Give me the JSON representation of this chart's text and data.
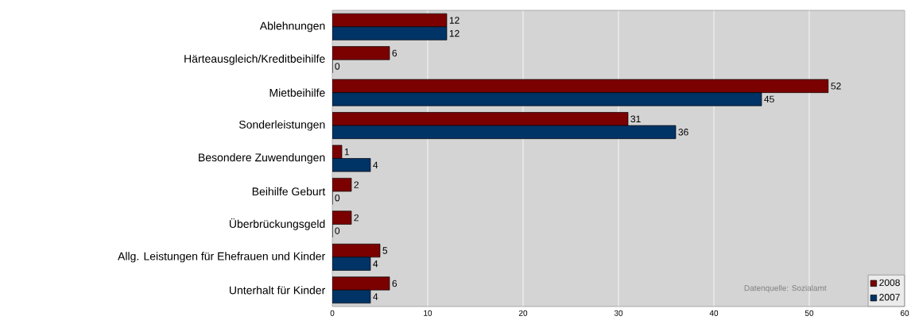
{
  "chart_data": {
    "type": "bar",
    "orientation": "horizontal",
    "categories": [
      "Ablehnungen",
      "Härteausgleich/Kreditbeihilfe",
      "Mietbeihilfe",
      "Sonderleistungen",
      "Besondere Zuwendungen",
      "Beihilfe Geburt",
      "Überbrückungsgeld",
      "Allg. Leistungen für Ehefrauen und Kinder",
      "Unterhalt für Kinder"
    ],
    "series": [
      {
        "name": "2008",
        "color": "#7b0000",
        "values": [
          12,
          6,
          52,
          31,
          1,
          2,
          2,
          5,
          6
        ]
      },
      {
        "name": "2007",
        "color": "#003366",
        "values": [
          12,
          0,
          45,
          36,
          4,
          0,
          0,
          4,
          4
        ]
      }
    ],
    "xlim": [
      0,
      60
    ],
    "xticks": [
      0,
      10,
      20,
      30,
      40,
      50,
      60
    ],
    "grid": "x",
    "legend": "bottom right",
    "data_labels": true,
    "annotations": [
      "Datenquelle: Sozialamt"
    ]
  }
}
